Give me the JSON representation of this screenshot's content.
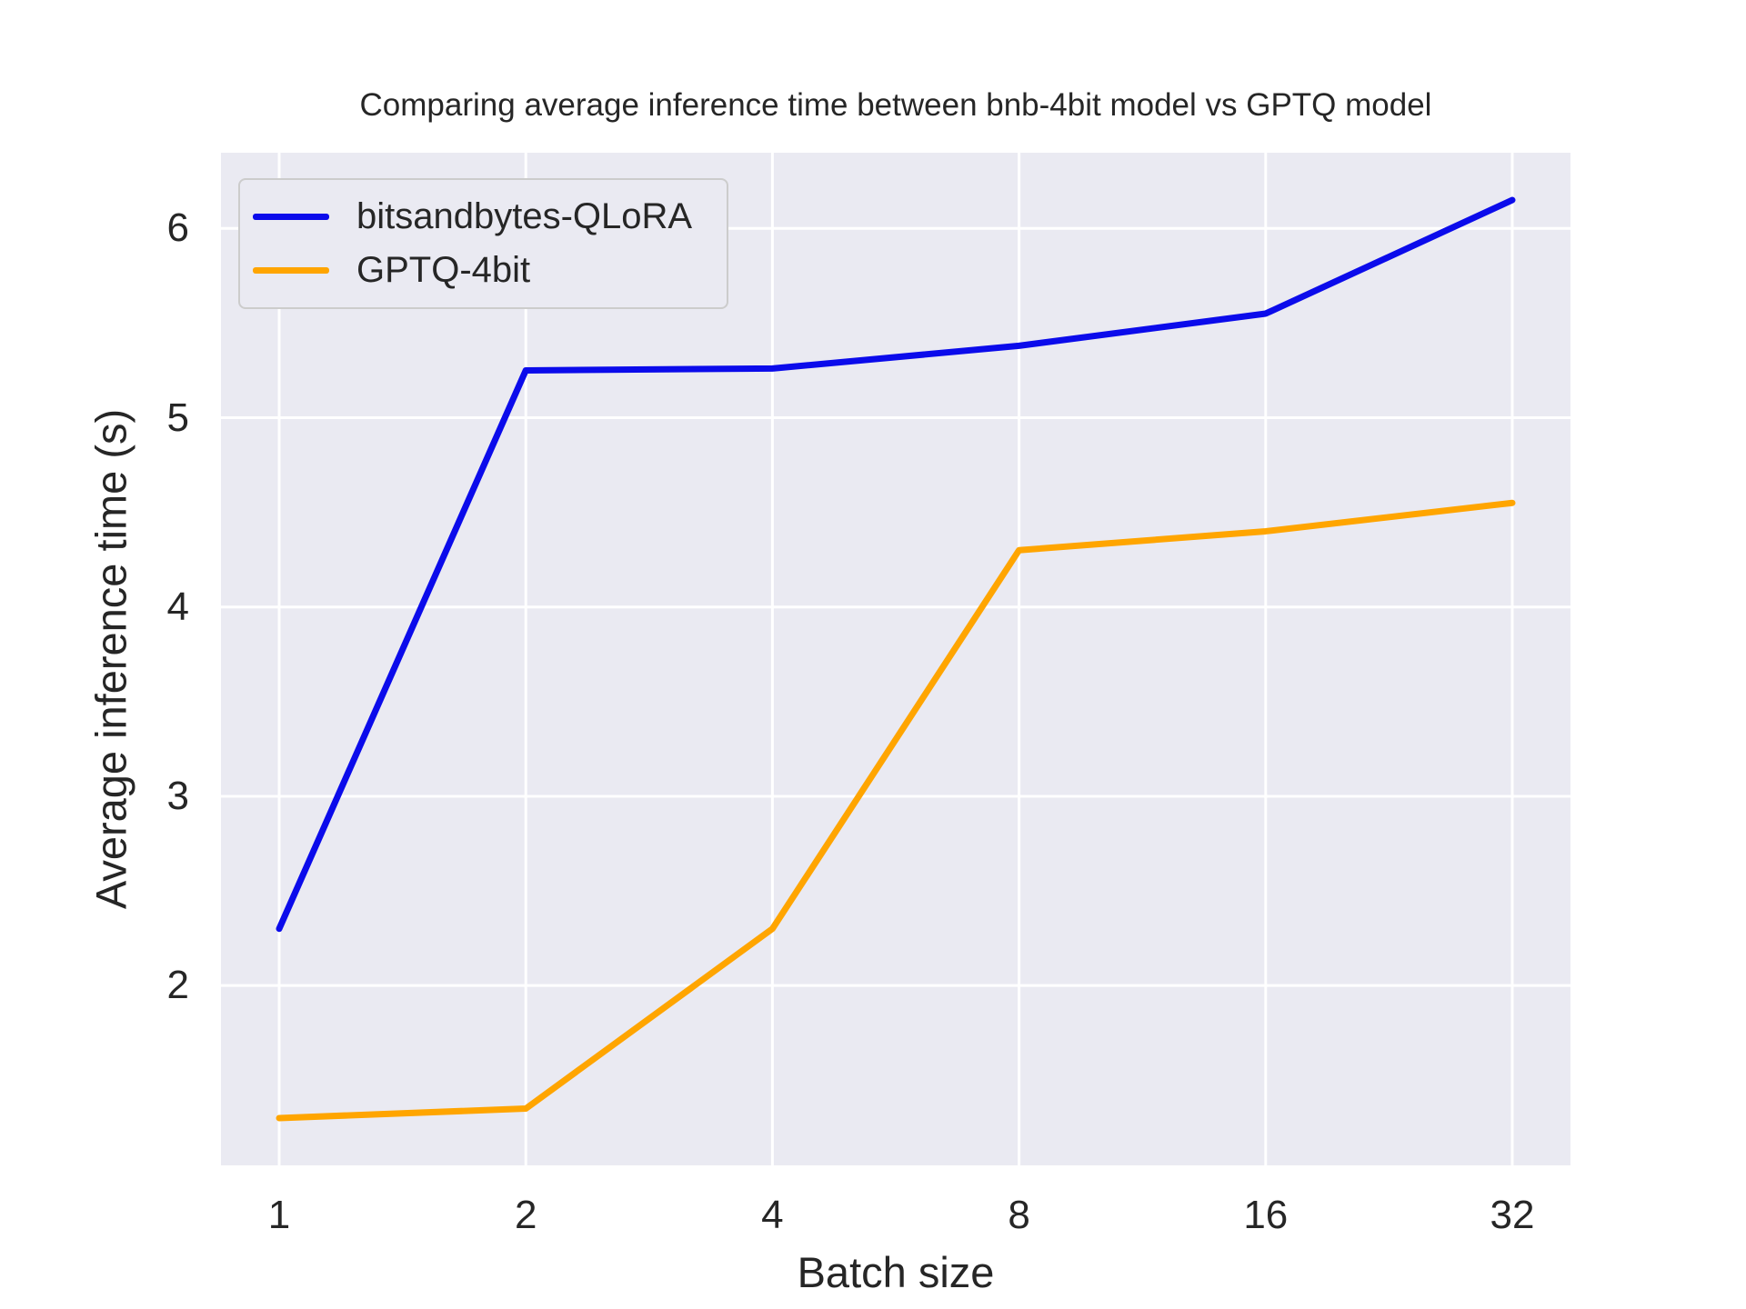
{
  "chart_data": {
    "type": "line",
    "title": "Comparing average inference time between bnb-4bit model vs GPTQ model",
    "xlabel": "Batch size",
    "ylabel": "Average inference time (s)",
    "categories": [
      1,
      2,
      4,
      8,
      16,
      32
    ],
    "x_tick_labels": [
      "1",
      "2",
      "4",
      "8",
      "16",
      "32"
    ],
    "x_axis_note": "batch sizes evenly spaced (log2-like category spacing)",
    "y_ticks": [
      2,
      3,
      4,
      5,
      6
    ],
    "ylim": [
      1.05,
      6.4
    ],
    "grid": true,
    "legend_position": "upper left",
    "series": [
      {
        "name": "bitsandbytes-QLoRA",
        "color": "#0B0BEB",
        "values": [
          2.3,
          5.25,
          5.26,
          5.38,
          5.55,
          6.15
        ]
      },
      {
        "name": "GPTQ-4bit",
        "color": "#FFA500",
        "values": [
          1.3,
          1.35,
          2.3,
          4.3,
          4.4,
          4.55
        ]
      }
    ]
  },
  "colors": {
    "figure_background": "#FFFFFF",
    "plot_background": "#EAEAF2",
    "gridline": "#FFFFFF",
    "text": "#262626",
    "legend_border": "#CCCCCC",
    "legend_background": "#EAEAF2"
  }
}
